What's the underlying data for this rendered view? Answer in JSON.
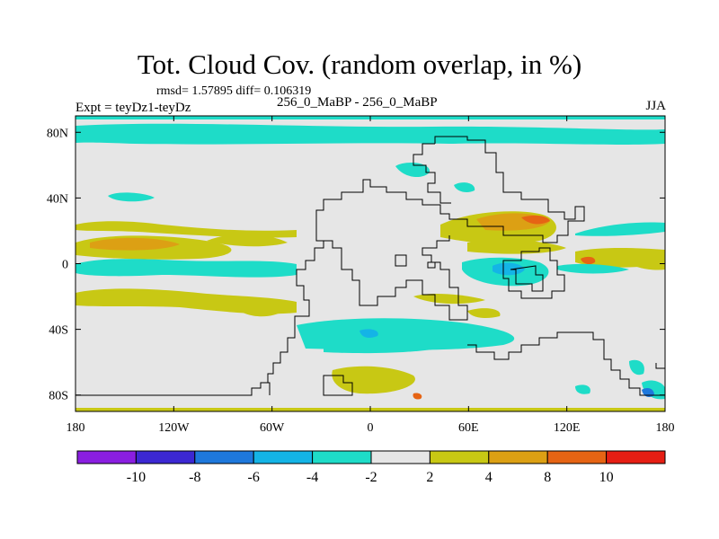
{
  "title": "Tot. Cloud Cov. (random overlap, in %)",
  "stats": "rmsd= 1.57895  diff= 0.106319",
  "experiment": "Expt = teyDz1-teyDz",
  "difference_label": "256_0_MaBP - 256_0_MaBP",
  "season": "JJA",
  "map": {
    "lon_range": [
      -180,
      180
    ],
    "lat_range": [
      -90,
      90
    ],
    "lat_ticks": [
      {
        "v": 80,
        "label": "80N"
      },
      {
        "v": 40,
        "label": "40N"
      },
      {
        "v": 0,
        "label": "0"
      },
      {
        "v": -40,
        "label": "40S"
      },
      {
        "v": -80,
        "label": "80S"
      }
    ],
    "lon_ticks": [
      {
        "v": -180,
        "label": "180"
      },
      {
        "v": -120,
        "label": "120W"
      },
      {
        "v": -60,
        "label": "60W"
      },
      {
        "v": 0,
        "label": "0"
      },
      {
        "v": 60,
        "label": "60E"
      },
      {
        "v": 120,
        "label": "120E"
      },
      {
        "v": 180,
        "label": "180"
      }
    ]
  },
  "colorbar": {
    "colors": [
      "#8a1ee0",
      "#3c28d2",
      "#1e78dc",
      "#14b4e6",
      "#1edcc8",
      "#e6e6e6",
      "#c8c814",
      "#dca014",
      "#e66414",
      "#e61e14"
    ],
    "labels": [
      "-10",
      "-8",
      "-6",
      "-4",
      "-2",
      "2",
      "4",
      "8",
      "10"
    ]
  }
}
